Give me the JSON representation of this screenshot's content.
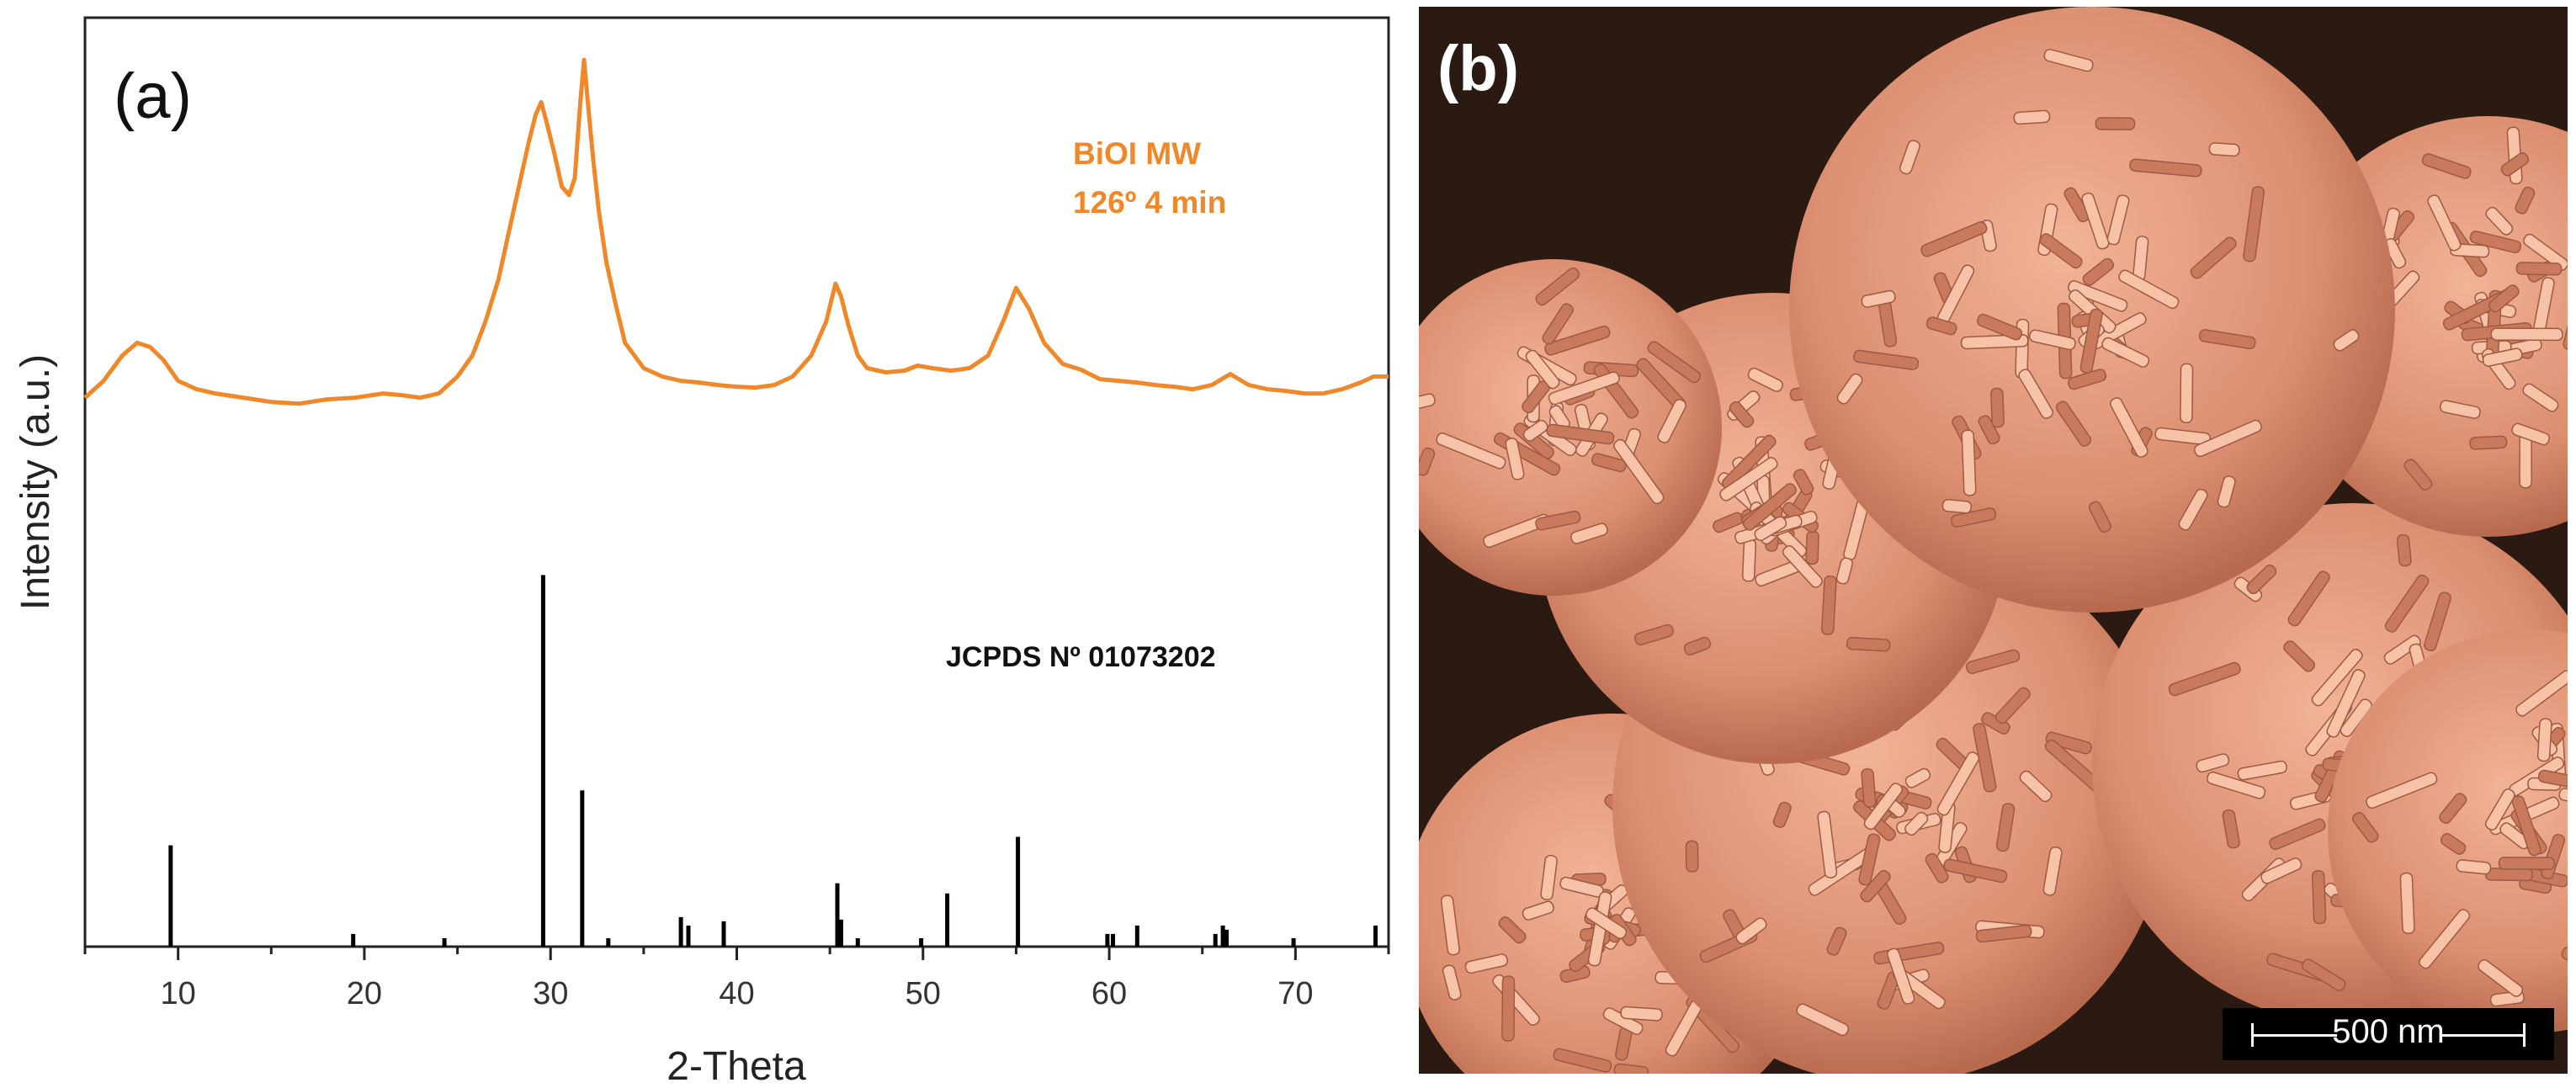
{
  "figure": {
    "panel_a_label": "(a)",
    "panel_b_label": "(b)"
  },
  "chart_data": {
    "type": "line",
    "title": "",
    "xlabel": "2-Theta",
    "ylabel": "Intensity (a.u.)",
    "xlim": [
      5,
      75
    ],
    "ylim": [
      0,
      110
    ],
    "xticks": [
      10,
      20,
      30,
      40,
      50,
      60,
      70
    ],
    "grid": false,
    "series": [
      {
        "name": "BiOI MW 126º 4 min",
        "kind": "line",
        "color": "#f0882a",
        "x": [
          5,
          6,
          7,
          7.8,
          8.5,
          9.2,
          10,
          11,
          12,
          13.5,
          15,
          16.5,
          18,
          19.5,
          21,
          22,
          23,
          24,
          25,
          25.8,
          26.5,
          27.2,
          27.8,
          28.3,
          28.8,
          29.2,
          29.5,
          29.8,
          30.2,
          30.6,
          31,
          31.3,
          31.6,
          31.8,
          32,
          32.3,
          32.6,
          33,
          33.5,
          34,
          35,
          36,
          37,
          38,
          39,
          40,
          41,
          42,
          43,
          44,
          44.8,
          45.3,
          45.6,
          46,
          46.5,
          47,
          48,
          49,
          49.7,
          50.5,
          51.5,
          52.5,
          53.5,
          54.3,
          55,
          55.7,
          56.5,
          57.5,
          58.5,
          59.5,
          60.5,
          61.5,
          62.5,
          63.5,
          64.5,
          65.5,
          66.5,
          67.5,
          68.5,
          69.5,
          70.5,
          71.5,
          72.5,
          73.5,
          74.2,
          75
        ],
        "y": [
          65,
          67,
          70,
          71.5,
          71,
          69.5,
          67,
          66,
          65.5,
          65,
          64.5,
          64.3,
          64.8,
          65,
          65.5,
          65.3,
          65,
          65.5,
          67.5,
          70,
          74,
          79,
          85,
          90,
          95,
          98.5,
          100,
          97.5,
          94,
          90,
          89,
          91,
          100,
          105,
          100,
          93,
          87,
          81,
          76,
          71.5,
          68.5,
          67.5,
          67,
          66.8,
          66.5,
          66.3,
          66.2,
          66.5,
          67.5,
          70,
          74,
          78.5,
          77,
          73.5,
          70,
          68.5,
          68,
          68.2,
          68.8,
          68.5,
          68.2,
          68.5,
          70,
          74,
          78,
          75.5,
          71.5,
          69,
          68.3,
          67.2,
          67,
          66.8,
          66.5,
          66.3,
          66,
          66.5,
          67.8,
          66.5,
          66,
          65.8,
          65.5,
          65.5,
          66,
          66.8,
          67.5,
          67.5
        ]
      },
      {
        "name": "JCPDS Nº 01073202",
        "kind": "stick",
        "color": "#000000",
        "x": [
          9.6,
          19.4,
          24.3,
          29.6,
          31.7,
          33.1,
          37.0,
          37.4,
          39.3,
          45.4,
          45.6,
          46.5,
          49.9,
          51.3,
          55.1,
          59.9,
          60.2,
          61.5,
          65.7,
          66.1,
          66.3,
          69.9,
          74.3
        ],
        "y": [
          12,
          1.5,
          1,
          44,
          18.5,
          1,
          3.5,
          2.5,
          3,
          7.5,
          3.2,
          1,
          1,
          6.3,
          13,
          1.5,
          1.5,
          2.5,
          1.5,
          2.5,
          2,
          1,
          2.5
        ]
      }
    ],
    "annotations": [
      {
        "text": "BiOI MW",
        "color": "#f0882a"
      },
      {
        "text": "126º 4 min",
        "color": "#f0882a"
      },
      {
        "text": "JCPDS Nº 01073202",
        "color": "#111111"
      }
    ]
  },
  "sem_image": {
    "scale_bar_label": "500 nm",
    "tint_color": "#e3977a",
    "background_color": "#2a1a12"
  }
}
